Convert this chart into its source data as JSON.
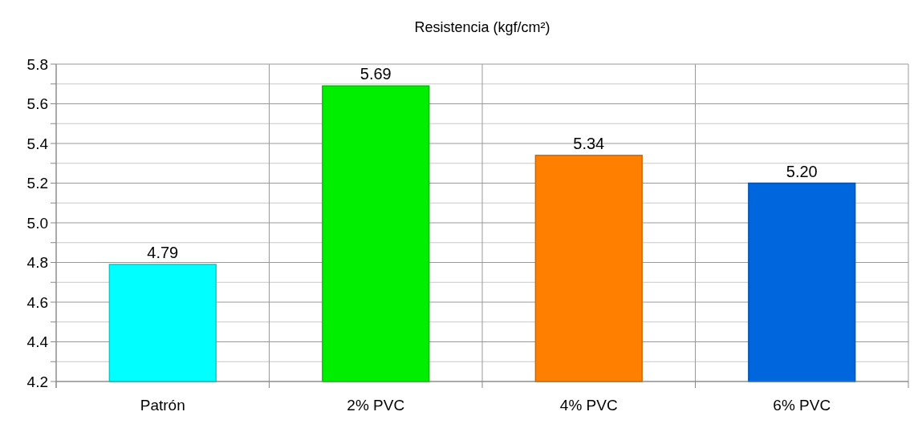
{
  "chart_data": {
    "type": "bar",
    "title": "Resistencia (kgf/cm²)",
    "categories": [
      "Patrón",
      "2% PVC",
      "4% PVC",
      "6% PVC"
    ],
    "values": [
      4.79,
      5.69,
      5.34,
      5.2
    ],
    "value_labels": [
      "4.79",
      "5.69",
      "5.34",
      "5.20"
    ],
    "colors": [
      "#00ffff",
      "#00ee00",
      "#ff7f00",
      "#0066dd"
    ],
    "ylim": [
      4.2,
      5.8
    ],
    "yticks": [
      "4.2",
      {
        "value": 4.3,
        "label": null
      },
      "4.4",
      {
        "value": 4.5,
        "label": null
      },
      "4.6",
      {
        "value": 4.7,
        "label": null
      },
      "4.8",
      {
        "value": 4.9,
        "label": null
      },
      "5.0",
      {
        "value": 5.1,
        "label": null
      },
      "5.2",
      {
        "value": 5.3,
        "label": null
      },
      "5.4",
      {
        "value": 5.5,
        "label": null
      },
      "5.6",
      {
        "value": 5.7,
        "label": null
      },
      "5.8"
    ],
    "grid": true
  }
}
